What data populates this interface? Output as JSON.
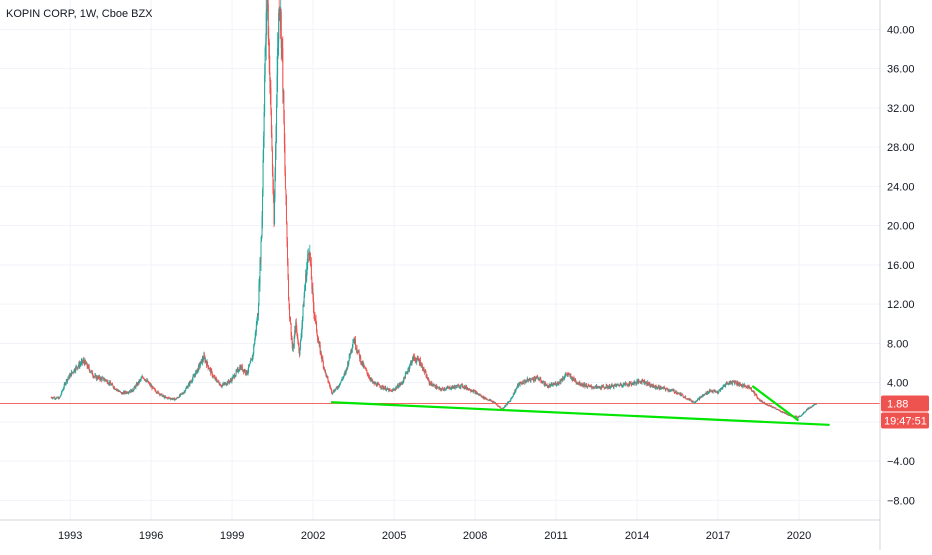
{
  "header": {
    "symbol_title": "KOPIN CORP, 1W, Cboe BZX"
  },
  "price_badge": {
    "value": "1.88",
    "color": "#ef5350"
  },
  "countdown_badge": {
    "value": "19:47:51",
    "color": "#ef5350"
  },
  "colors": {
    "up": "#26a69a",
    "down": "#ef5350",
    "trendline": "#00e600",
    "gridline": "#f0f3fa",
    "axis_text": "#131722",
    "price_line": "#ef5350"
  },
  "chart_data": {
    "type": "candlestick",
    "title": "KOPIN CORP, 1W, Cboe BZX",
    "xlabel": "",
    "ylabel": "",
    "grid": true,
    "xlim": [
      1990.4,
      2023.0
    ],
    "ylim": [
      -10.0,
      43.0
    ],
    "x_ticks": [
      1993,
      1996,
      1999,
      2002,
      2005,
      2008,
      2011,
      2014,
      2017,
      2020
    ],
    "x_tick_labels": [
      "1993",
      "1996",
      "1999",
      "2002",
      "2005",
      "2008",
      "2011",
      "2014",
      "2017",
      "2020"
    ],
    "y_ticks": [
      -8,
      -4,
      0,
      4,
      8,
      12,
      16,
      20,
      24,
      28,
      32,
      36,
      40
    ],
    "y_tick_labels": [
      "−8.00",
      "−4.00",
      "0.00",
      "4.00",
      "8.00",
      "12.00",
      "16.00",
      "20.00",
      "24.00",
      "28.00",
      "32.00",
      "36.00",
      "40.00"
    ],
    "last_price": 1.88,
    "series": [
      {
        "kind": "price",
        "points": [
          [
            1992.3,
            2.5
          ],
          [
            1992.6,
            2.4
          ],
          [
            1992.85,
            4.2
          ],
          [
            1993.2,
            5.5
          ],
          [
            1993.5,
            6.2
          ],
          [
            1993.9,
            4.6
          ],
          [
            1994.3,
            4.3
          ],
          [
            1994.6,
            3.6
          ],
          [
            1994.9,
            2.9
          ],
          [
            1995.3,
            3.2
          ],
          [
            1995.7,
            4.6
          ],
          [
            1996.1,
            3.3
          ],
          [
            1996.5,
            2.5
          ],
          [
            1996.9,
            2.3
          ],
          [
            1997.2,
            3.0
          ],
          [
            1997.6,
            4.7
          ],
          [
            1997.95,
            6.6
          ],
          [
            1998.3,
            4.6
          ],
          [
            1998.6,
            3.7
          ],
          [
            1998.95,
            4.2
          ],
          [
            1999.3,
            5.6
          ],
          [
            1999.55,
            5.0
          ],
          [
            1999.75,
            6.5
          ],
          [
            1999.95,
            11.0
          ],
          [
            2000.1,
            20.0
          ],
          [
            2000.2,
            35.0
          ],
          [
            2000.3,
            44.0
          ],
          [
            2000.45,
            30.0
          ],
          [
            2000.55,
            20.0
          ],
          [
            2000.65,
            34.0
          ],
          [
            2000.75,
            44.0
          ],
          [
            2000.85,
            38.0
          ],
          [
            2000.95,
            26.0
          ],
          [
            2001.1,
            12.0
          ],
          [
            2001.25,
            7.0
          ],
          [
            2001.35,
            10.0
          ],
          [
            2001.5,
            7.0
          ],
          [
            2001.7,
            14.0
          ],
          [
            2001.85,
            18.0
          ],
          [
            2002.0,
            12.0
          ],
          [
            2002.2,
            8.0
          ],
          [
            2002.45,
            5.0
          ],
          [
            2002.7,
            3.0
          ],
          [
            2002.9,
            3.5
          ],
          [
            2003.2,
            5.0
          ],
          [
            2003.5,
            8.5
          ],
          [
            2003.8,
            6.0
          ],
          [
            2004.2,
            4.0
          ],
          [
            2004.6,
            3.5
          ],
          [
            2004.9,
            3.1
          ],
          [
            2005.3,
            4.0
          ],
          [
            2005.7,
            6.5
          ],
          [
            2005.95,
            6.2
          ],
          [
            2006.3,
            4.0
          ],
          [
            2006.7,
            3.3
          ],
          [
            2007.1,
            3.5
          ],
          [
            2007.5,
            3.7
          ],
          [
            2007.9,
            3.2
          ],
          [
            2008.3,
            2.5
          ],
          [
            2008.7,
            2.0
          ],
          [
            2009.0,
            1.3
          ],
          [
            2009.3,
            2.2
          ],
          [
            2009.6,
            3.8
          ],
          [
            2009.9,
            4.2
          ],
          [
            2010.3,
            4.5
          ],
          [
            2010.7,
            3.6
          ],
          [
            2011.1,
            4.0
          ],
          [
            2011.4,
            4.9
          ],
          [
            2011.8,
            4.0
          ],
          [
            2012.2,
            3.6
          ],
          [
            2012.6,
            3.5
          ],
          [
            2013.0,
            3.6
          ],
          [
            2013.4,
            3.8
          ],
          [
            2013.8,
            3.9
          ],
          [
            2014.2,
            4.2
          ],
          [
            2014.6,
            3.6
          ],
          [
            2015.0,
            3.4
          ],
          [
            2015.4,
            3.1
          ],
          [
            2015.8,
            2.5
          ],
          [
            2016.1,
            2.0
          ],
          [
            2016.4,
            2.6
          ],
          [
            2016.7,
            3.2
          ],
          [
            2017.0,
            3.0
          ],
          [
            2017.3,
            3.9
          ],
          [
            2017.6,
            4.1
          ],
          [
            2017.9,
            3.7
          ],
          [
            2018.2,
            3.5
          ],
          [
            2018.5,
            2.3
          ],
          [
            2018.8,
            1.8
          ],
          [
            2019.1,
            1.4
          ],
          [
            2019.4,
            1.0
          ],
          [
            2019.7,
            0.6
          ],
          [
            2019.95,
            0.5
          ],
          [
            2020.1,
            0.7
          ],
          [
            2020.3,
            1.3
          ],
          [
            2020.5,
            1.6
          ],
          [
            2020.65,
            1.88
          ]
        ]
      }
    ],
    "trendlines": [
      {
        "name": "support",
        "points": [
          [
            2002.7,
            2.0
          ],
          [
            2021.1,
            -0.3
          ]
        ]
      },
      {
        "name": "downtrend",
        "points": [
          [
            2018.3,
            3.6
          ],
          [
            2019.95,
            0.2
          ]
        ]
      }
    ],
    "price_line": 1.88
  }
}
